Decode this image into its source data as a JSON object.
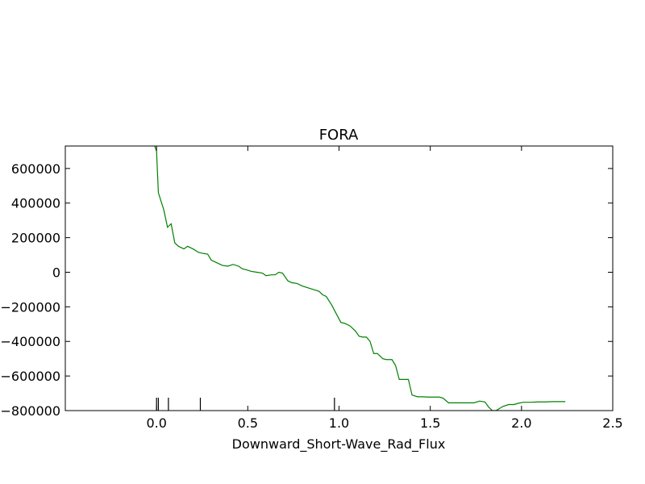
{
  "chart_data": {
    "type": "line",
    "title": "FORA",
    "xlabel": "Downward_Short-Wave_Rad_Flux",
    "ylabel": "",
    "xlim": [
      -0.5,
      2.5
    ],
    "ylim": [
      -800000,
      730000
    ],
    "grid": false,
    "colors": {
      "line": "#008000",
      "rug": "#000000",
      "axes": "#000000"
    },
    "xticks": [
      {
        "value": 0.0,
        "label": "0.0"
      },
      {
        "value": 0.5,
        "label": "0.5"
      },
      {
        "value": 1.0,
        "label": "1.0"
      },
      {
        "value": 1.5,
        "label": "1.5"
      },
      {
        "value": 2.0,
        "label": "2.0"
      },
      {
        "value": 2.5,
        "label": "2.5"
      }
    ],
    "yticks": [
      {
        "value": 600000,
        "label": "600000"
      },
      {
        "value": 400000,
        "label": "400000"
      },
      {
        "value": 200000,
        "label": "200000"
      },
      {
        "value": 0,
        "label": "0"
      },
      {
        "value": -200000,
        "label": "−200000"
      },
      {
        "value": -400000,
        "label": "−400000"
      },
      {
        "value": -600000,
        "label": "−600000"
      },
      {
        "value": -800000,
        "label": "−800000"
      }
    ],
    "rug": [
      0.0,
      0.01,
      0.065,
      0.24,
      0.975
    ],
    "series": [
      {
        "color": "#008000",
        "x": [
          -0.01,
          0.0,
          0.01,
          0.04,
          0.06,
          0.08,
          0.1,
          0.12,
          0.15,
          0.17,
          0.2,
          0.23,
          0.25,
          0.28,
          0.3,
          0.33,
          0.36,
          0.39,
          0.42,
          0.45,
          0.47,
          0.49,
          0.52,
          0.55,
          0.58,
          0.6,
          0.63,
          0.65,
          0.67,
          0.69,
          0.72,
          0.74,
          0.77,
          0.8,
          0.83,
          0.86,
          0.89,
          0.91,
          0.93,
          0.96,
          0.98,
          1.01,
          1.03,
          1.06,
          1.09,
          1.11,
          1.13,
          1.15,
          1.17,
          1.19,
          1.21,
          1.24,
          1.26,
          1.29,
          1.31,
          1.33,
          1.36,
          1.38,
          1.4,
          1.43,
          1.46,
          1.49,
          1.52,
          1.55,
          1.57,
          1.6,
          1.65,
          1.7,
          1.74,
          1.77,
          1.8,
          1.82,
          1.84,
          1.86,
          1.9,
          1.93,
          1.96,
          1.98,
          2.01,
          2.05,
          2.09,
          2.13,
          2.17,
          2.21,
          2.24
        ],
        "y": [
          730000,
          700000,
          460000,
          360000,
          260000,
          280000,
          170000,
          150000,
          135000,
          150000,
          135000,
          115000,
          110000,
          105000,
          70000,
          55000,
          40000,
          35000,
          45000,
          35000,
          20000,
          15000,
          5000,
          0,
          -5000,
          -20000,
          -15000,
          -15000,
          0,
          -5000,
          -50000,
          -60000,
          -65000,
          -80000,
          -90000,
          -100000,
          -110000,
          -130000,
          -140000,
          -190000,
          -230000,
          -290000,
          -295000,
          -310000,
          -340000,
          -370000,
          -375000,
          -375000,
          -400000,
          -470000,
          -470000,
          -500000,
          -505000,
          -505000,
          -540000,
          -620000,
          -620000,
          -620000,
          -710000,
          -720000,
          -720000,
          -722000,
          -722000,
          -722000,
          -728000,
          -755000,
          -755000,
          -755000,
          -755000,
          -745000,
          -750000,
          -780000,
          -800000,
          -800000,
          -775000,
          -765000,
          -765000,
          -758000,
          -752000,
          -752000,
          -750000,
          -750000,
          -748000,
          -748000,
          -748000
        ]
      }
    ]
  }
}
